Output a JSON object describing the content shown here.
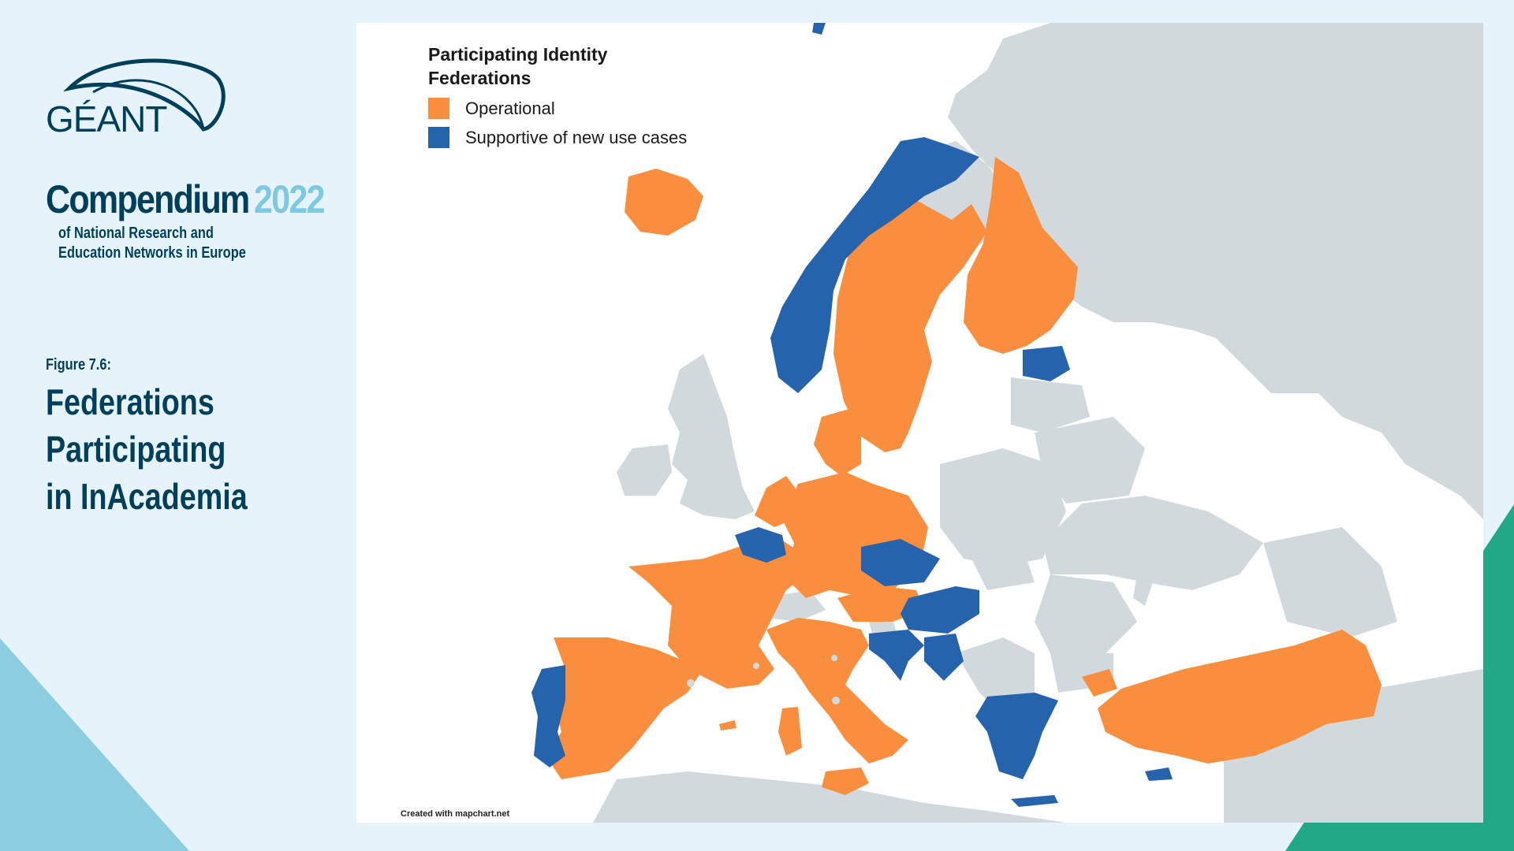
{
  "brand": {
    "logo_text": "GÉANT",
    "compendium_title": "Compendium",
    "compendium_year": "2022",
    "subtitle": "of National Research and Education Networks in Europe"
  },
  "figure": {
    "label": "Figure 7.6:",
    "title": "Federations Participating in InAcademia"
  },
  "map": {
    "legend_title": "Participating Identity Federations",
    "legend": [
      {
        "label": "Operational",
        "color": "#f98e3e"
      },
      {
        "label": "Supportive of new use cases",
        "color": "#2563ac"
      }
    ],
    "credit": "Created with mapchart.net",
    "colors": {
      "operational": "#f98e3e",
      "supportive": "#2563ac",
      "other_land": "#d2d9dc",
      "sea": "#ffffff"
    },
    "countries": {
      "operational": [
        "Iceland",
        "Sweden",
        "Finland",
        "Denmark",
        "Netherlands",
        "Germany",
        "France",
        "Spain",
        "Italy",
        "Austria",
        "Turkey",
        "Malta"
      ],
      "supportive": [
        "Norway",
        "Estonia",
        "Belgium",
        "Czech Republic",
        "Hungary",
        "Croatia",
        "Serbia",
        "Portugal",
        "Greece",
        "Cyprus"
      ]
    }
  },
  "theme": {
    "primary": "#003f5c",
    "accent": "#7ec8e3",
    "background": "#e6f3fa",
    "triangle_left": "#8ccde0",
    "triangle_right": "#22a886"
  }
}
